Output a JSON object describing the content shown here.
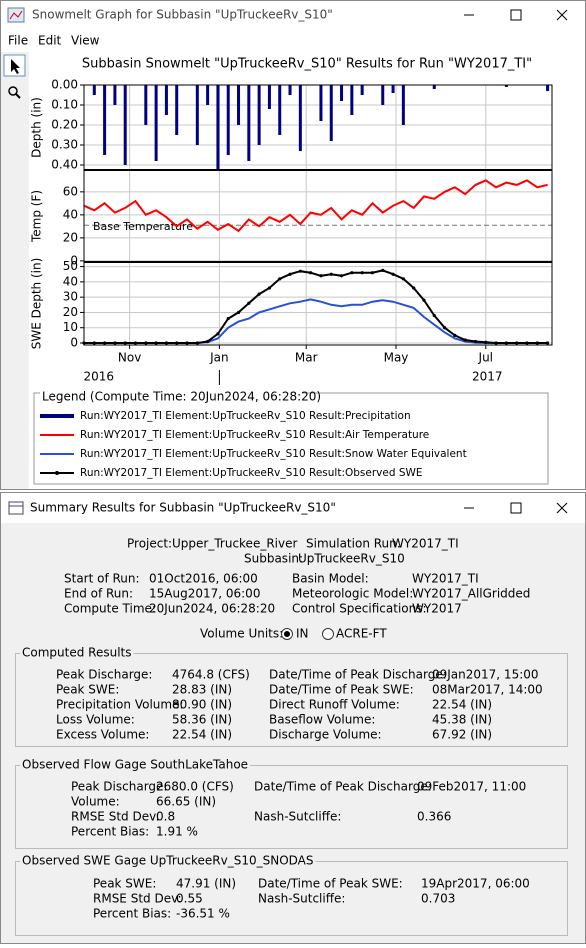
{
  "graph_window": {
    "title": "Snowmelt Graph for Subbasin \"UpTruckeeRv_S10\"",
    "menu": [
      "File",
      "Edit",
      "View"
    ],
    "legend_title": "Legend (Compute Time: 20Jun2024, 06:28:20)"
  },
  "chart_data": [
    {
      "type": "bar",
      "title": "Subbasin Snowmelt \"UpTruckeeRv_S10\" Results for Run \"WY2017_TI\"",
      "y_label": "Depth (in)",
      "y_inverted": true,
      "x": [
        0,
        7,
        14,
        21,
        28,
        35,
        42,
        49,
        56,
        63,
        70,
        77,
        84,
        91,
        98,
        105,
        112,
        119,
        126,
        133,
        140,
        147,
        154,
        161,
        168,
        175,
        182,
        189,
        196,
        203,
        210,
        217,
        224,
        231,
        238,
        245,
        252,
        259,
        266,
        273,
        280,
        287,
        294,
        301,
        308,
        315
      ],
      "xlim": [
        0,
        318
      ],
      "ylim": [
        0,
        0.425
      ],
      "yticks": [
        {
          "value": 0,
          "label": "0.00"
        },
        {
          "value": 0.1,
          "label": "0.10"
        },
        {
          "value": 0.2,
          "label": "0.20"
        },
        {
          "value": 0.3,
          "label": "0.30"
        },
        {
          "value": 0.4,
          "label": "0.40"
        }
      ],
      "grid": true,
      "series": [
        {
          "name": "Run:WY2017_TI Element:UpTruckeeRv_S10 Result:Precipitation",
          "color": "#000080",
          "values": [
            0,
            0.05,
            0.35,
            0.1,
            0.4,
            0,
            0.2,
            0.38,
            0.15,
            0.25,
            0,
            0.3,
            0.1,
            0.42,
            0.35,
            0.2,
            0.38,
            0.3,
            0.12,
            0.25,
            0.05,
            0.33,
            0,
            0.18,
            0.28,
            0.08,
            0.15,
            0.05,
            0,
            0.1,
            0.04,
            0.2,
            0,
            0,
            0.02,
            0,
            0,
            0,
            0,
            0,
            0,
            0.01,
            0,
            0,
            0,
            0.03
          ]
        }
      ]
    },
    {
      "type": "line",
      "y_label": "Temp (F)",
      "x": [
        0,
        7,
        14,
        21,
        28,
        35,
        42,
        49,
        56,
        63,
        70,
        77,
        84,
        91,
        98,
        105,
        112,
        119,
        126,
        133,
        140,
        147,
        154,
        161,
        168,
        175,
        182,
        189,
        196,
        203,
        210,
        217,
        224,
        231,
        238,
        245,
        252,
        259,
        266,
        273,
        280,
        287,
        294,
        301,
        308,
        315
      ],
      "xlim": [
        0,
        318
      ],
      "ylim": [
        -1,
        79
      ],
      "yticks": [
        0,
        20,
        40,
        60
      ],
      "grid": true,
      "reference_lines": [
        {
          "label": "Base Temperature",
          "value": 31
        }
      ],
      "series": [
        {
          "name": "Run:WY2017_TI Element:UpTruckeeRv_S10 Result:Air Temperature",
          "color": "#ff0000",
          "values": [
            48,
            44,
            50,
            42,
            46,
            52,
            40,
            44,
            38,
            30,
            36,
            28,
            34,
            27,
            32,
            26,
            36,
            30,
            38,
            34,
            40,
            32,
            42,
            40,
            46,
            36,
            44,
            40,
            50,
            42,
            48,
            52,
            46,
            56,
            54,
            60,
            64,
            58,
            66,
            70,
            64,
            68,
            66,
            70,
            64,
            66
          ]
        }
      ]
    },
    {
      "type": "line",
      "y_label": "SWE Depth (in)",
      "x": [
        0,
        7,
        14,
        21,
        28,
        35,
        42,
        49,
        56,
        63,
        70,
        77,
        84,
        91,
        98,
        105,
        112,
        119,
        126,
        133,
        140,
        147,
        154,
        161,
        168,
        175,
        182,
        189,
        196,
        203,
        210,
        217,
        224,
        231,
        238,
        245,
        252,
        259,
        266,
        273,
        280,
        287,
        294,
        301,
        308,
        315
      ],
      "xlim": [
        0,
        318
      ],
      "ylim": [
        -1.3,
        53
      ],
      "yticks": [
        0,
        10,
        20,
        30,
        40,
        50
      ],
      "grid": true,
      "xticks": [
        {
          "value": 31,
          "label": "Nov"
        },
        {
          "value": 92,
          "label": "Jan"
        },
        {
          "value": 151,
          "label": "Mar"
        },
        {
          "value": 212,
          "label": "May"
        },
        {
          "value": 273,
          "label": "Jul"
        }
      ],
      "x_year_labels": [
        {
          "value": 10,
          "label": "2016"
        },
        {
          "value": 274,
          "label": "2017"
        }
      ],
      "series": [
        {
          "name": "Run:WY2017_TI Element:UpTruckeeRv_S10 Result:Snow Water Equivalent",
          "color": "#2850d8",
          "values": [
            0,
            0,
            0,
            0,
            0,
            0,
            0,
            0,
            0,
            0,
            0,
            0,
            0.5,
            3,
            10,
            14,
            16,
            20,
            22,
            24,
            26,
            27,
            28.5,
            27,
            25,
            24,
            25,
            25,
            27,
            28,
            27,
            25,
            23,
            17,
            12,
            7,
            3,
            1,
            0.2,
            0,
            0,
            0,
            0,
            0,
            0,
            0
          ]
        },
        {
          "name": "Run:WY2017_TI Element:UpTruckeeRv_S10 Result:Observed SWE",
          "color": "#000000",
          "marker": true,
          "values": [
            0,
            0,
            0,
            0,
            0,
            0,
            0,
            0,
            0,
            0,
            0,
            0,
            1,
            6,
            16,
            20,
            26,
            32,
            36,
            42,
            45,
            47,
            46,
            44,
            45,
            44,
            46,
            46,
            46,
            47.5,
            45,
            42,
            36,
            28,
            18,
            10,
            5,
            2,
            1,
            0.5,
            0,
            0,
            0,
            0,
            0,
            0
          ]
        }
      ]
    }
  ],
  "summary_window": {
    "title": "Summary Results for Subbasin \"UpTruckeeRv_S10\"",
    "header": [
      [
        "Project:",
        "Upper_Truckee_River"
      ],
      [
        "Simulation Run:",
        "WY2017_TI"
      ],
      [
        "Subbasin:",
        "UpTruckeeRv_S10"
      ],
      [
        "Start of Run:",
        "01Oct2016, 06:00"
      ],
      [
        "Basin Model:",
        "WY2017_TI"
      ],
      [
        "End of Run:",
        "15Aug2017, 06:00"
      ],
      [
        "Meteorologic Model:",
        "WY2017_AllGridded"
      ],
      [
        "Compute Time:",
        "20Jun2024, 06:28:20"
      ],
      [
        "Control Specifications:",
        "WY2017"
      ]
    ],
    "volume_units": {
      "label": "Volume Units:",
      "options": [
        "IN",
        "ACRE-FT"
      ],
      "selected": 0
    },
    "groups": [
      {
        "title": "Computed Results",
        "rows": [
          [
            "Peak Discharge:",
            "4764.8 (CFS)"
          ],
          [
            "Date/Time of Peak Discharge:",
            "09Jan2017, 15:00"
          ],
          [
            "Peak SWE:",
            "28.83 (IN)"
          ],
          [
            "Date/Time of Peak SWE:",
            "08Mar2017, 14:00"
          ],
          [
            "Precipitation Volume:",
            "80.90 (IN)"
          ],
          [
            "Direct Runoff Volume:",
            "22.54 (IN)"
          ],
          [
            "Loss Volume:",
            "58.36 (IN)"
          ],
          [
            "Baseflow Volume:",
            "45.38 (IN)"
          ],
          [
            "Excess Volume:",
            "22.54 (IN)"
          ],
          [
            "Discharge Volume:",
            "67.92 (IN)"
          ]
        ]
      },
      {
        "title": "Observed Flow Gage SouthLakeTahoe",
        "rows": [
          [
            "Peak Discharge:",
            "2680.0 (CFS)"
          ],
          [
            "Date/Time of Peak Discharge:",
            "09Feb2017, 11:00"
          ],
          [
            "Volume:",
            "66.65 (IN)"
          ],
          [
            "RMSE Std Dev:",
            "0.8"
          ],
          [
            "Nash-Sutcliffe:",
            "0.366"
          ],
          [
            "Percent Bias:",
            "1.91 %"
          ]
        ]
      },
      {
        "title": "Observed SWE Gage UpTruckeeRv_S10_SNODAS",
        "rows": [
          [
            "Peak SWE:",
            "47.91 (IN)"
          ],
          [
            "Date/Time of Peak SWE:",
            "19Apr2017, 06:00"
          ],
          [
            "RMSE Std Dev:",
            "0.55"
          ],
          [
            "Nash-Sutcliffe:",
            "0.703"
          ],
          [
            "Percent Bias:",
            "-36.51 %"
          ]
        ]
      }
    ]
  }
}
